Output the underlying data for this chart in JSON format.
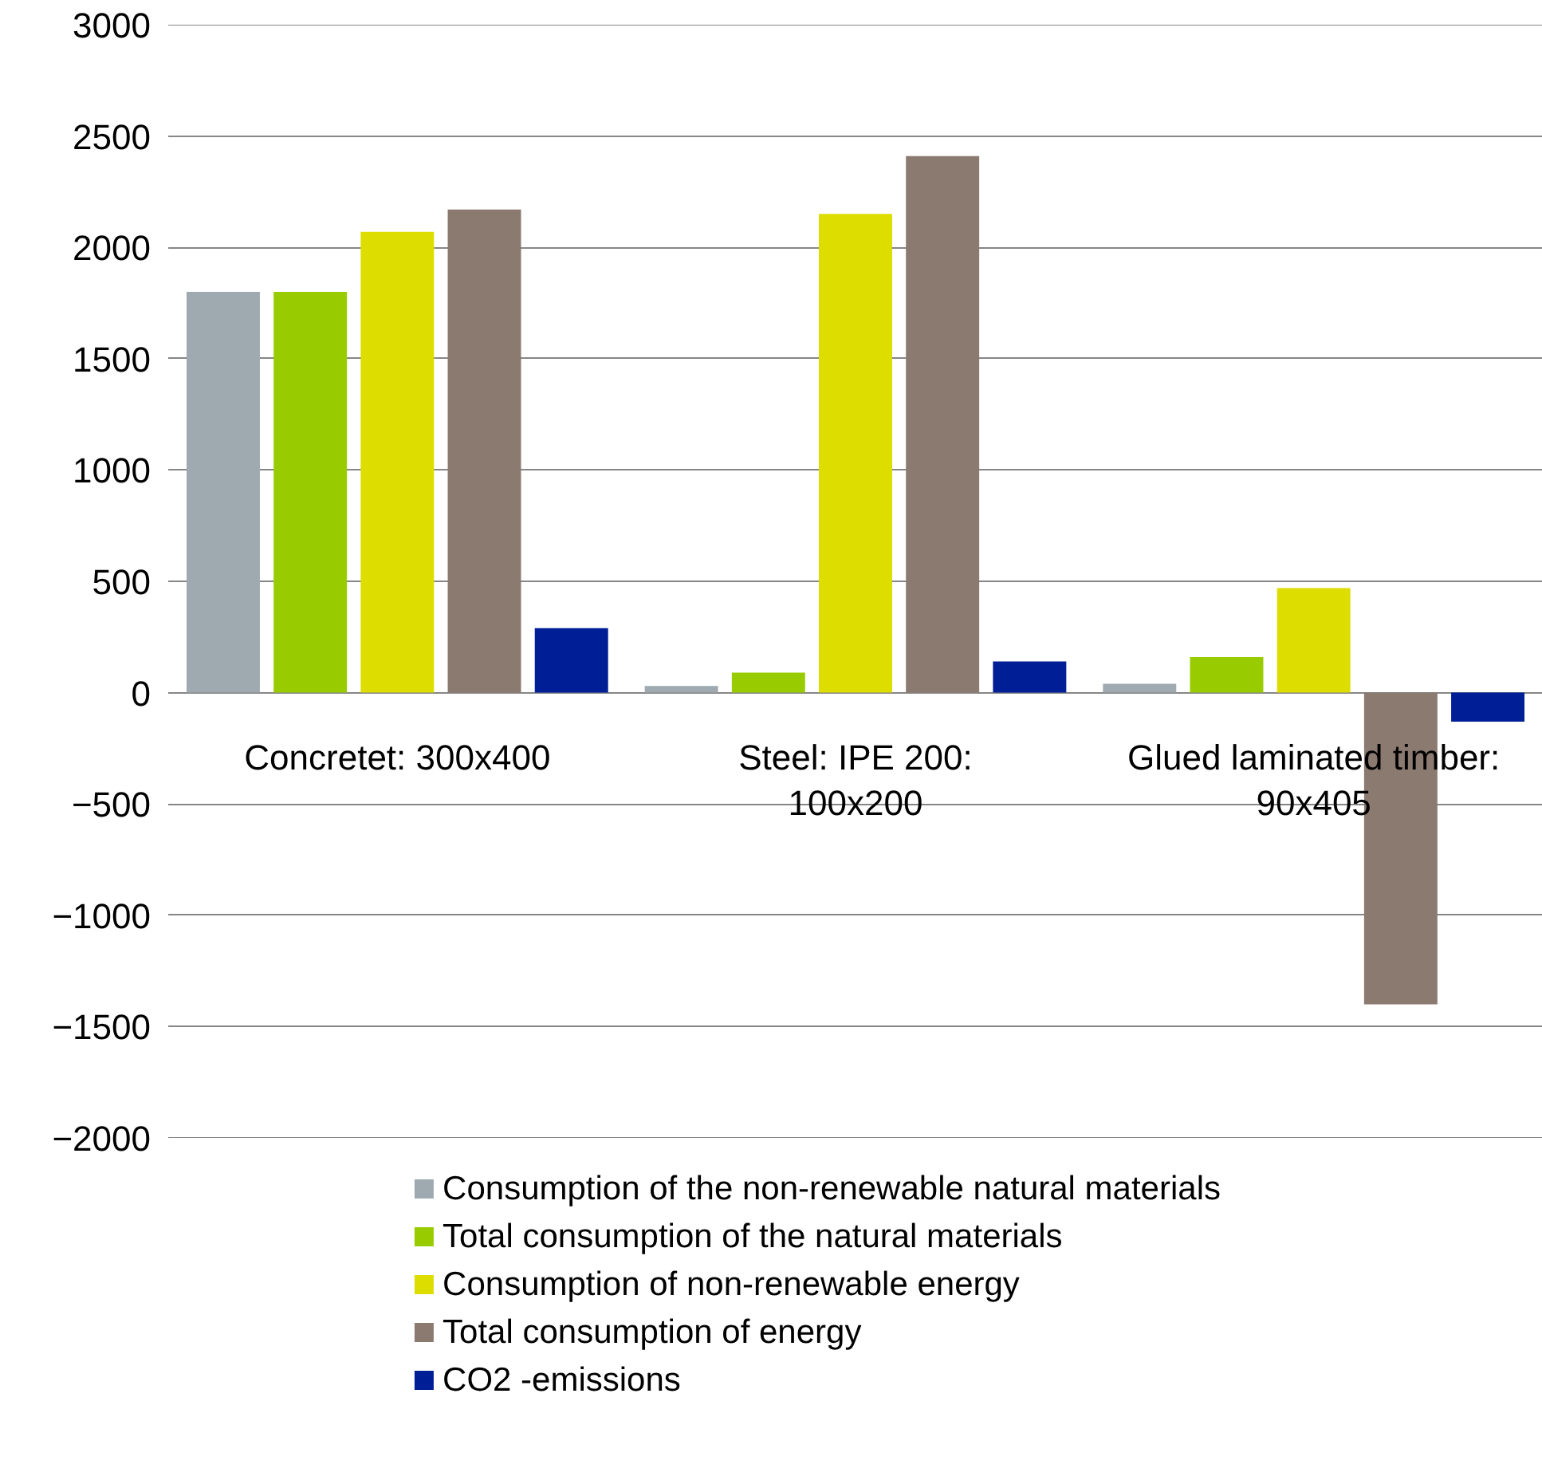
{
  "chart_data": {
    "type": "bar",
    "categories": [
      "Concretet: 300x400",
      "Steel: IPE 200: 100x200",
      "Glued laminated timber: 90x405"
    ],
    "series": [
      {
        "name": "Consumption of the non-renewable natural materials",
        "color": "#9eaab0",
        "values": [
          1800,
          30,
          40
        ]
      },
      {
        "name": "Total consumption of the natural materials",
        "color": "#99cc00",
        "values": [
          1800,
          90,
          160
        ]
      },
      {
        "name": "Consumption of non-renewable energy",
        "color": "#dddd00",
        "values": [
          2070,
          2150,
          470
        ]
      },
      {
        "name": "Total consumption of energy",
        "color": "#8b7a70",
        "values": [
          2170,
          2410,
          -1400
        ]
      },
      {
        "name": "CO2 -emissions",
        "color": "#001e96",
        "values": [
          290,
          140,
          -130
        ]
      }
    ],
    "ylim": [
      -2000,
      3000
    ],
    "yticks": [
      -2000,
      -1500,
      -1000,
      -500,
      0,
      500,
      1000,
      1500,
      2000,
      2500,
      3000
    ],
    "grid": "y",
    "legend": "bottom"
  }
}
